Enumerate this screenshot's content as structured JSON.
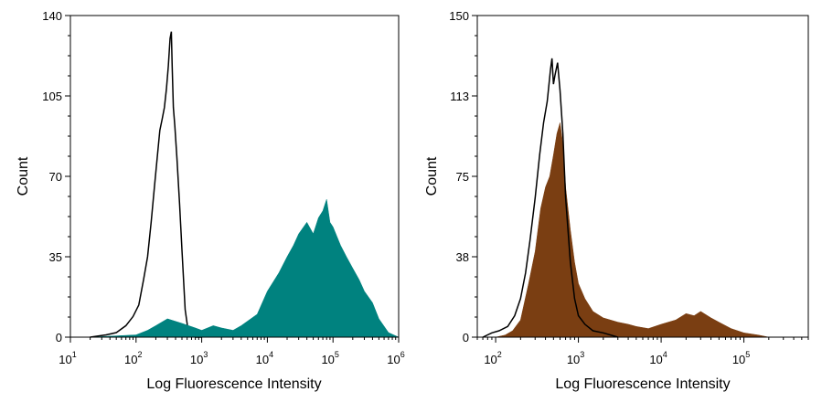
{
  "chart_data": [
    {
      "type": "area",
      "title": "",
      "xlabel": "Log Fluorescence Intensity",
      "ylabel": "Count",
      "xscale": "log",
      "xlim": [
        10,
        1000000
      ],
      "ylim": [
        0,
        140
      ],
      "x_ticks": [
        {
          "base": "10",
          "exp": "1",
          "value": 10
        },
        {
          "base": "10",
          "exp": "2",
          "value": 100
        },
        {
          "base": "10",
          "exp": "3",
          "value": 1000
        },
        {
          "base": "10",
          "exp": "4",
          "value": 10000
        },
        {
          "base": "10",
          "exp": "5",
          "value": 100000
        },
        {
          "base": "10",
          "exp": "6",
          "value": 1000000
        }
      ],
      "y_ticks": [
        "0",
        "35",
        "70",
        "105",
        "140"
      ],
      "grid": false,
      "legend": "none",
      "series": [
        {
          "style": "outline",
          "color": "#000000",
          "x": [
            20,
            35,
            50,
            70,
            90,
            110,
            130,
            150,
            170,
            190,
            210,
            230,
            250,
            270,
            290,
            310,
            330,
            345,
            355,
            370,
            390,
            420,
            460,
            500,
            560,
            620,
            700,
            800,
            1000
          ],
          "y": [
            0,
            1,
            2,
            5,
            9,
            14,
            25,
            35,
            50,
            65,
            78,
            90,
            95,
            100,
            108,
            118,
            130,
            133,
            118,
            100,
            92,
            78,
            58,
            38,
            12,
            3,
            1,
            0,
            0
          ]
        },
        {
          "style": "filled",
          "color": "#00827F",
          "x": [
            20,
            100,
            150,
            200,
            300,
            500,
            800,
            1000,
            1500,
            2000,
            3000,
            4000,
            5000,
            7000,
            10000,
            15000,
            20000,
            25000,
            30000,
            40000,
            50000,
            60000,
            70000,
            80000,
            90000,
            100000,
            130000,
            160000,
            200000,
            250000,
            300000,
            400000,
            500000,
            700000,
            1000000
          ],
          "y": [
            0,
            1,
            3,
            5,
            8,
            6,
            4,
            3,
            5,
            4,
            3,
            5,
            7,
            10,
            20,
            28,
            35,
            40,
            45,
            50,
            45,
            52,
            55,
            60,
            50,
            48,
            40,
            35,
            30,
            25,
            20,
            15,
            8,
            2,
            0
          ]
        }
      ]
    },
    {
      "type": "area",
      "title": "",
      "xlabel": "Log Fluorescence Intensity",
      "ylabel": "Count",
      "xscale": "log",
      "xlim": [
        60,
        600000
      ],
      "ylim": [
        0,
        150
      ],
      "x_ticks": [
        {
          "base": "10",
          "exp": "2",
          "value": 100
        },
        {
          "base": "10",
          "exp": "3",
          "value": 1000
        },
        {
          "base": "10",
          "exp": "4",
          "value": 10000
        },
        {
          "base": "10",
          "exp": "5",
          "value": 100000
        }
      ],
      "y_ticks": [
        "0",
        "38",
        "75",
        "113",
        "150"
      ],
      "grid": false,
      "legend": "none",
      "series": [
        {
          "style": "filled",
          "color": "#7A3E12",
          "x": [
            100,
            130,
            160,
            200,
            250,
            300,
            350,
            400,
            450,
            500,
            550,
            600,
            650,
            700,
            800,
            900,
            1000,
            1200,
            1500,
            2000,
            3000,
            4000,
            5000,
            7000,
            10000,
            15000,
            20000,
            25000,
            30000,
            40000,
            50000,
            70000,
            100000,
            150000,
            200000
          ],
          "y": [
            0,
            1,
            3,
            8,
            25,
            40,
            60,
            70,
            75,
            85,
            95,
            100,
            90,
            70,
            50,
            35,
            25,
            18,
            12,
            9,
            7,
            6,
            5,
            4,
            6,
            8,
            11,
            10,
            12,
            9,
            7,
            4,
            2,
            1,
            0
          ]
        },
        {
          "style": "outline",
          "color": "#000000",
          "x": [
            70,
            90,
            110,
            140,
            170,
            200,
            230,
            260,
            300,
            340,
            380,
            420,
            460,
            480,
            500,
            520,
            560,
            600,
            650,
            700,
            800,
            900,
            1000,
            1200,
            1500,
            2000,
            3000
          ],
          "y": [
            0,
            2,
            3,
            5,
            10,
            18,
            30,
            45,
            65,
            85,
            100,
            110,
            125,
            130,
            118,
            122,
            128,
            115,
            95,
            65,
            35,
            18,
            10,
            6,
            3,
            2,
            0
          ]
        }
      ]
    }
  ]
}
